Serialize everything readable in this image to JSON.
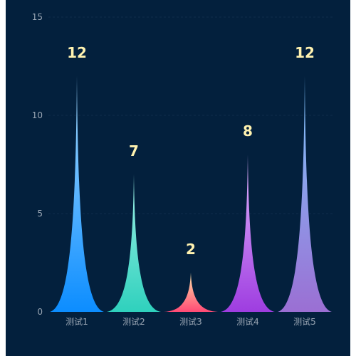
{
  "chart_data": {
    "type": "bar",
    "categories": [
      "测试1",
      "测试2",
      "测试3",
      "测试4",
      "测试5"
    ],
    "values": [
      12,
      7,
      2,
      8,
      12
    ],
    "ylim": [
      0,
      15
    ],
    "y_ticks": [
      0,
      5,
      10,
      15
    ],
    "grid": true,
    "colors": [
      {
        "top": "#a8dcff",
        "bottom": "#0c8dff"
      },
      {
        "top": "#9ff0e6",
        "bottom": "#2fd1bd"
      },
      {
        "top": "#ffe6a8",
        "bottom": "#ff4a75"
      },
      {
        "top": "#e3b6ff",
        "bottom": "#9e3de0"
      },
      {
        "top": "#7ec9ff",
        "bottom": "#9b6fd3"
      }
    ],
    "label_color": "#fff2b0",
    "background": "#03203d"
  }
}
